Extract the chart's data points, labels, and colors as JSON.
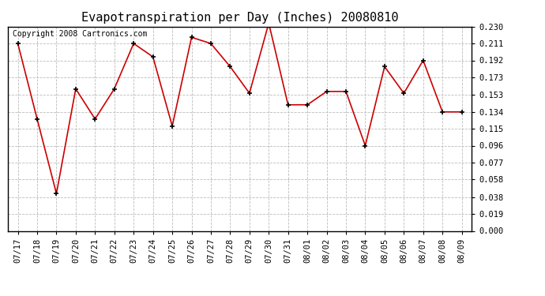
{
  "title": "Evapotranspiration per Day (Inches) 20080810",
  "copyright": "Copyright 2008 Cartronics.com",
  "x_labels": [
    "07/17",
    "07/18",
    "07/19",
    "07/20",
    "07/21",
    "07/22",
    "07/23",
    "07/24",
    "07/25",
    "07/26",
    "07/27",
    "07/28",
    "07/29",
    "07/30",
    "07/31",
    "08/01",
    "08/02",
    "08/03",
    "08/04",
    "08/05",
    "08/06",
    "08/07",
    "08/08",
    "08/09"
  ],
  "y_values": [
    0.211,
    0.126,
    0.042,
    0.16,
    0.126,
    0.16,
    0.211,
    0.196,
    0.118,
    0.218,
    0.211,
    0.185,
    0.155,
    0.234,
    0.142,
    0.142,
    0.157,
    0.157,
    0.096,
    0.185,
    0.155,
    0.192,
    0.134,
    0.134
  ],
  "y_ticks": [
    0.0,
    0.019,
    0.038,
    0.058,
    0.077,
    0.096,
    0.115,
    0.134,
    0.153,
    0.173,
    0.192,
    0.211,
    0.23
  ],
  "ylim": [
    0.0,
    0.23
  ],
  "line_color": "#cc0000",
  "marker": "+",
  "marker_color": "#000000",
  "bg_color": "#ffffff",
  "plot_bg_color": "#ffffff",
  "grid_color": "#bbbbbb",
  "title_fontsize": 11,
  "copyright_fontsize": 7,
  "tick_fontsize": 7.5
}
